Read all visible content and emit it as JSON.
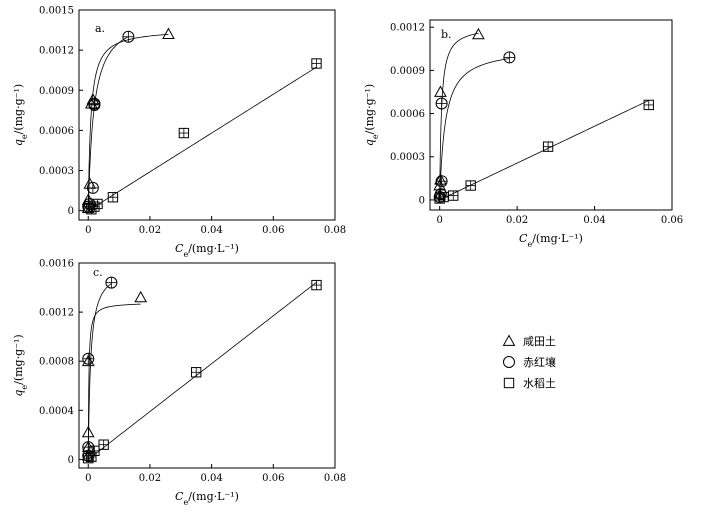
{
  "legend": [
    {
      "marker": "triangle",
      "label": "咸田土"
    },
    {
      "marker": "circle",
      "label": "赤红壤"
    },
    {
      "marker": "square",
      "label": "水稻土"
    }
  ],
  "chart_data": [
    {
      "type": "scatter",
      "panel": "a.",
      "xlabel": "Ce/(mg·L⁻¹)",
      "ylabel": "qe/(mg·g⁻¹)",
      "xlim": [
        -0.003,
        0.08
      ],
      "ylim": [
        -7e-05,
        0.0015
      ],
      "xticks": [
        0,
        0.02,
        0.04,
        0.06,
        0.08
      ],
      "xtick_labels": [
        "0",
        "0.02",
        "0.04",
        "0.06",
        "0.08"
      ],
      "yticks": [
        0,
        0.0003,
        0.0006,
        0.0009,
        0.0012,
        0.0015
      ],
      "ytick_labels": [
        "0",
        "0.0003",
        "0.0006",
        "0.0009",
        "0.0012",
        "0.0015"
      ],
      "series": [
        {
          "name": "咸田土",
          "marker": "triangle",
          "x": [
            0,
            0,
            0.0005,
            0.001,
            0.0015,
            0.026
          ],
          "y": [
            2e-05,
            8e-05,
            0.0002,
            0.0008,
            0.00083,
            0.00132
          ],
          "curve": {
            "model": "langmuir",
            "qmax": 0.00136,
            "K": 1200
          }
        },
        {
          "name": "赤红壤",
          "marker": "circle",
          "x": [
            0,
            0.0005,
            0.0015,
            0.002,
            0.002,
            0.013
          ],
          "y": [
            3e-05,
            5e-05,
            0.00017,
            0.00079,
            0.0008,
            0.0013
          ],
          "curve": {
            "model": "langmuir",
            "qmax": 0.00148,
            "K": 560
          }
        },
        {
          "name": "水稻土",
          "marker": "square",
          "x": [
            0,
            0.001,
            0.002,
            0.003,
            0.008,
            0.031,
            0.074
          ],
          "y": [
            2e-05,
            1e-05,
            3e-05,
            5e-05,
            0.0001,
            0.00058,
            0.0011
          ],
          "curve": {
            "model": "freundlich",
            "Kf": 0.0145,
            "n": 1.0
          }
        }
      ]
    },
    {
      "type": "scatter",
      "panel": "b.",
      "xlabel": "Ce/(mg·L⁻¹)",
      "ylabel": "qe/(mg·g⁻¹)",
      "xlim": [
        -0.0025,
        0.06
      ],
      "ylim": [
        -7e-05,
        0.00125
      ],
      "xticks": [
        0,
        0.02,
        0.04,
        0.06
      ],
      "xtick_labels": [
        "0",
        "0.02",
        "0.04",
        "0.06"
      ],
      "yticks": [
        0,
        0.0003,
        0.0006,
        0.0009,
        0.0012
      ],
      "ytick_labels": [
        "0",
        "0.0003",
        "0.0006",
        "0.0009",
        "0.0012"
      ],
      "series": [
        {
          "name": "咸田土",
          "marker": "triangle",
          "x": [
            0,
            0,
            0.0002,
            0.0002,
            0.01
          ],
          "y": [
            3e-05,
            0.0001,
            0.00014,
            0.00075,
            0.00115
          ],
          "curve": {
            "model": "langmuir",
            "qmax": 0.00121,
            "K": 2200
          }
        },
        {
          "name": "赤红壤",
          "marker": "circle",
          "x": [
            0,
            0.0003,
            0.0005,
            0.0005,
            0.018
          ],
          "y": [
            2e-05,
            4e-05,
            0.00013,
            0.00067,
            0.00099
          ],
          "curve": {
            "model": "langmuir",
            "qmax": 0.00106,
            "K": 700
          }
        },
        {
          "name": "水稻土",
          "marker": "square",
          "x": [
            0,
            0.001,
            0.0035,
            0.008,
            0.028,
            0.054
          ],
          "y": [
            1e-05,
            2e-05,
            3e-05,
            0.0001,
            0.00037,
            0.00066
          ],
          "curve": {
            "model": "freundlich",
            "Kf": 0.0128,
            "n": 1.0
          }
        }
      ]
    },
    {
      "type": "scatter",
      "panel": "c.",
      "xlabel": "Ce/(mg·L⁻¹)",
      "ylabel": "qe/(mg·g⁻¹)",
      "xlim": [
        -0.003,
        0.08
      ],
      "ylim": [
        -7e-05,
        0.0016
      ],
      "xticks": [
        0,
        0.02,
        0.04,
        0.06,
        0.08
      ],
      "xtick_labels": [
        "0",
        "0.02",
        "0.04",
        "0.06",
        "0.08"
      ],
      "yticks": [
        0,
        0.0004,
        0.0008,
        0.0012,
        0.0016
      ],
      "ytick_labels": [
        "0",
        "0.0004",
        "0.0008",
        "0.0012",
        "0.0016"
      ],
      "series": [
        {
          "name": "咸田土",
          "marker": "triangle",
          "x": [
            0,
            0,
            0,
            0,
            0.017
          ],
          "y": [
            3e-05,
            0.0001,
            0.00022,
            0.0008,
            0.00132
          ],
          "curve": {
            "model": "langmuir",
            "qmax": 0.00128,
            "K": 5000
          }
        },
        {
          "name": "赤红壤",
          "marker": "circle",
          "x": [
            0,
            0,
            0,
            0.0075
          ],
          "y": [
            3e-05,
            0.0001,
            0.00082,
            0.00144
          ],
          "curve": {
            "model": "langmuir",
            "qmax": 0.00158,
            "K": 1300
          }
        },
        {
          "name": "水稻土",
          "marker": "square",
          "x": [
            0,
            0.001,
            0.002,
            0.005,
            0.035,
            0.074
          ],
          "y": [
            1e-05,
            2e-05,
            7e-05,
            0.00012,
            0.00071,
            0.00142
          ],
          "curve": {
            "model": "freundlich",
            "Kf": 0.0195,
            "n": 1.0
          }
        }
      ]
    }
  ]
}
